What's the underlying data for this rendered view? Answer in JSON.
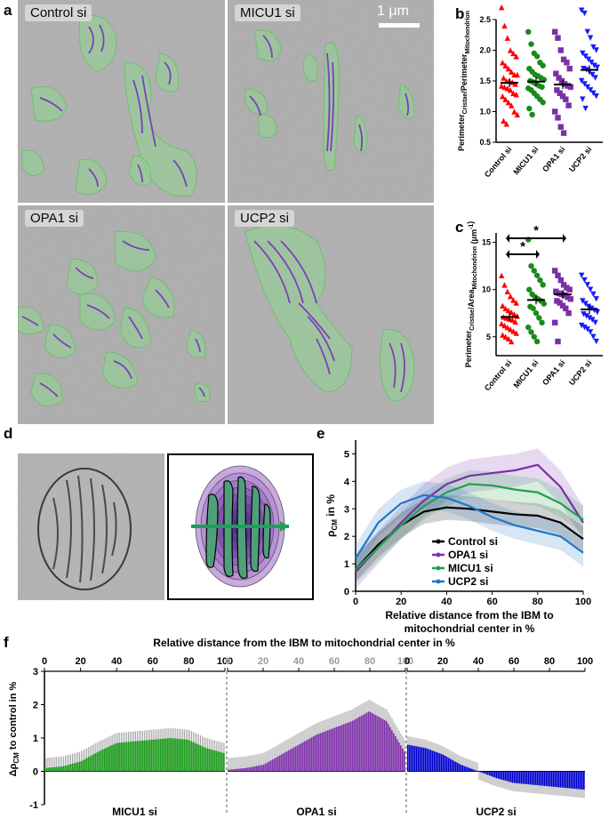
{
  "panels": {
    "a": "a",
    "b": "b",
    "c": "c",
    "d": "d",
    "e": "e",
    "f": "f"
  },
  "em_images": [
    {
      "label": "Control si"
    },
    {
      "label": "MICU1 si"
    },
    {
      "label": "OPA1 si"
    },
    {
      "label": "UCP2 si"
    }
  ],
  "scale_bar": "1 μm",
  "colors": {
    "control": "#ff0000",
    "micu1": "#1a8a1a",
    "opa1": "#7b2fa8",
    "ucp2": "#1a1aff",
    "mito_fill": "#8fd68f",
    "cristae": "#7a3fbf"
  },
  "chart_data": [
    {
      "id": "b",
      "type": "scatter",
      "ylabel_main": "Perimeter",
      "ylabel_sub1": "Cristae",
      "ylabel_sep": "/Perimeter",
      "ylabel_sub2": "Mitochondrion",
      "ylim": [
        0.5,
        2.5
      ],
      "yticks": [
        "0.5",
        "1.0",
        "1.5",
        "2.0",
        "2.5"
      ],
      "categories": [
        "Control si",
        "MICU1 si",
        "OPA1 si",
        "UCP2 si"
      ],
      "markers": [
        "triangle",
        "circle",
        "square",
        "triangle-down"
      ],
      "means": [
        1.47,
        1.49,
        1.44,
        1.68
      ],
      "series": [
        {
          "values": [
            2.7,
            2.4,
            2.2,
            2.0,
            1.95,
            1.9,
            1.8,
            1.75,
            1.7,
            1.65,
            1.6,
            1.6,
            1.55,
            1.5,
            1.5,
            1.48,
            1.45,
            1.42,
            1.4,
            1.38,
            1.35,
            1.3,
            1.28,
            1.25,
            1.2,
            1.15,
            1.1,
            1.0,
            0.95,
            0.85,
            0.8
          ]
        },
        {
          "values": [
            2.3,
            2.1,
            1.95,
            1.9,
            1.8,
            1.75,
            1.7,
            1.65,
            1.6,
            1.58,
            1.55,
            1.52,
            1.5,
            1.48,
            1.45,
            1.42,
            1.4,
            1.38,
            1.35,
            1.3,
            1.25,
            1.2,
            1.15,
            1.05,
            0.95
          ]
        },
        {
          "values": [
            2.3,
            2.2,
            2.0,
            1.85,
            1.8,
            1.7,
            1.62,
            1.55,
            1.5,
            1.45,
            1.42,
            1.4,
            1.35,
            1.3,
            1.25,
            1.2,
            1.1,
            1.0,
            0.9,
            0.75,
            0.65
          ]
        },
        {
          "values": [
            2.65,
            2.6,
            2.3,
            2.2,
            2.05,
            2.0,
            1.95,
            1.9,
            1.85,
            1.8,
            1.75,
            1.72,
            1.7,
            1.68,
            1.65,
            1.6,
            1.55,
            1.5,
            1.45,
            1.4,
            1.35,
            1.3,
            1.25,
            1.2,
            1.05
          ]
        }
      ]
    },
    {
      "id": "c",
      "type": "scatter",
      "ylabel_main": "Perimeter",
      "ylabel_sub1": "Cristae",
      "ylabel_sep": "/Area",
      "ylabel_sub2": "Mitochondrion",
      "ylabel_unit": "(μm",
      "ylabel_exp": "-1",
      "ylabel_close": ")",
      "ylim": [
        3,
        16
      ],
      "yticks": [
        "5",
        "10",
        "15"
      ],
      "categories": [
        "Control si",
        "MICU1 si",
        "OPA1 si",
        "UCP2 si"
      ],
      "markers": [
        "triangle",
        "circle",
        "square",
        "triangle-down"
      ],
      "means": [
        7.1,
        8.9,
        9.5,
        7.9
      ],
      "significance": "*",
      "series": [
        {
          "values": [
            11.5,
            10.5,
            9.8,
            9.3,
            8.9,
            8.6,
            8.3,
            8.0,
            7.8,
            7.6,
            7.4,
            7.2,
            7.1,
            7.0,
            6.9,
            6.8,
            6.6,
            6.4,
            6.2,
            6.0,
            5.8,
            5.6,
            5.4,
            5.2,
            5.0,
            4.8,
            4.5
          ]
        },
        {
          "values": [
            15.3,
            12.5,
            12.0,
            11.5,
            11.0,
            10.5,
            10.0,
            9.5,
            9.2,
            9.0,
            8.8,
            8.5,
            8.2,
            8.0,
            7.5,
            7.0,
            6.5,
            6.0,
            5.5,
            5.0,
            4.5
          ]
        },
        {
          "values": [
            12.0,
            11.5,
            11.0,
            10.5,
            10.2,
            10.0,
            9.8,
            9.6,
            9.5,
            9.4,
            9.2,
            9.0,
            8.8,
            8.6,
            8.3,
            8.0,
            7.5,
            6.5,
            4.5
          ]
        },
        {
          "values": [
            11.5,
            11.0,
            10.5,
            10.0,
            9.5,
            9.0,
            8.8,
            8.5,
            8.2,
            8.0,
            7.8,
            7.6,
            7.4,
            7.2,
            7.0,
            6.8,
            6.5,
            6.2,
            6.0,
            5.8,
            5.5,
            5.0,
            4.5
          ]
        }
      ]
    },
    {
      "id": "e",
      "type": "line",
      "ylabel": "ρ",
      "ylabel_sub": "CM",
      "ylabel_unit": " in %",
      "xlabel_line1": "Relative distance from the IBM to",
      "xlabel_line2": "mitochondrial center in %",
      "xlim": [
        0,
        100
      ],
      "ylim": [
        0,
        5.5
      ],
      "xticks": [
        "0",
        "20",
        "40",
        "60",
        "80",
        "100"
      ],
      "yticks": [
        "0",
        "1",
        "2",
        "3",
        "4",
        "5"
      ],
      "x": [
        0,
        10,
        20,
        30,
        40,
        50,
        60,
        70,
        80,
        90,
        100
      ],
      "series": [
        {
          "name": "Control si",
          "color": "#000000",
          "values": [
            0.8,
            1.7,
            2.4,
            2.9,
            3.05,
            3.0,
            2.9,
            2.8,
            2.75,
            2.5,
            1.9
          ],
          "band": 0.45
        },
        {
          "name": "OPA1 si",
          "color": "#7b2fa8",
          "values": [
            0.7,
            1.6,
            2.5,
            3.3,
            3.9,
            4.2,
            4.3,
            4.4,
            4.6,
            3.8,
            2.5
          ],
          "band": 0.6
        },
        {
          "name": "MICU1 si",
          "color": "#20a050",
          "values": [
            0.8,
            1.6,
            2.4,
            3.1,
            3.6,
            3.9,
            3.85,
            3.7,
            3.6,
            3.2,
            2.6
          ],
          "band": 0.5
        },
        {
          "name": "UCP2 si",
          "color": "#1f77c8",
          "values": [
            1.2,
            2.5,
            3.2,
            3.5,
            3.4,
            3.1,
            2.7,
            2.4,
            2.2,
            2.0,
            1.4
          ],
          "band": 0.5
        }
      ]
    },
    {
      "id": "f",
      "type": "bar",
      "title": "Relative distance from the IBM to mitochondrial center in %",
      "ylabel": "Δρ",
      "ylabel_sub": "CM",
      "ylabel_unit": " to control in %",
      "ylim": [
        -1,
        3
      ],
      "yticks": [
        "-1",
        "0",
        "1",
        "2",
        "3"
      ],
      "xticks": [
        "0",
        "20",
        "40",
        "60",
        "80",
        "100"
      ],
      "series": [
        {
          "name": "MICU1 si",
          "color": "#1a9a1a",
          "values": [
            0.1,
            0.15,
            0.3,
            0.6,
            0.85,
            0.9,
            0.95,
            1.0,
            0.95,
            0.7,
            0.55
          ],
          "err": 0.3
        },
        {
          "name": "OPA1 si",
          "color": "#7b2fa8",
          "values": [
            0.05,
            0.1,
            0.2,
            0.5,
            0.8,
            1.1,
            1.3,
            1.5,
            1.8,
            1.5,
            0.6
          ],
          "err": 0.35
        },
        {
          "name": "UCP2 si",
          "color": "#0000cc",
          "values": [
            0.8,
            0.7,
            0.5,
            0.2,
            0.0,
            -0.2,
            -0.35,
            -0.4,
            -0.45,
            -0.5,
            -0.55
          ],
          "err": 0.25
        }
      ]
    }
  ]
}
